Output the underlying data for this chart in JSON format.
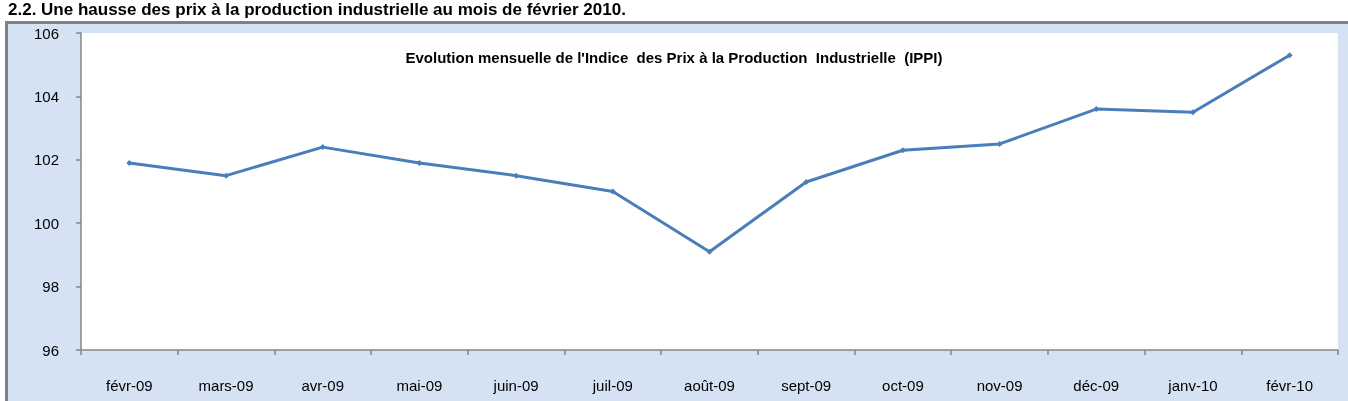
{
  "chart_data": {
    "type": "line",
    "title": "2.2. Une hausse des prix à la production industrielle au mois de février 2010.",
    "subtitle": "Evolution mensuelle de l'Indice  des Prix à la Production  Industrielle  (IPPI)",
    "categories": [
      "févr-09",
      "mars-09",
      "avr-09",
      "mai-09",
      "juin-09",
      "juil-09",
      "août-09",
      "sept-09",
      "oct-09",
      "nov-09",
      "déc-09",
      "janv-10",
      "févr-10"
    ],
    "series": [
      {
        "color": "#4a7ebb",
        "values": [
          101.9,
          101.5,
          102.4,
          101.9,
          101.5,
          101.0,
          99.1,
          101.3,
          102.3,
          102.5,
          103.6,
          103.5,
          105.3
        ]
      }
    ],
    "ylim": [
      96,
      106
    ],
    "yticks": [
      96,
      98,
      100,
      102,
      104,
      106
    ],
    "marker": "diamond",
    "line_style": "solid"
  }
}
